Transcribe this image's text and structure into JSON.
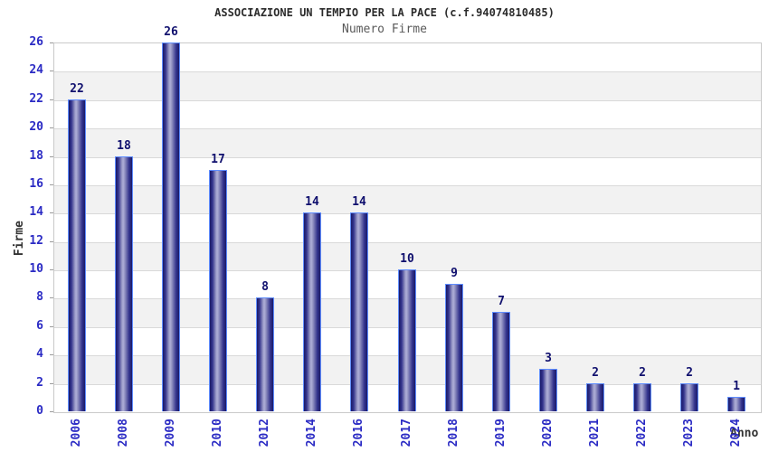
{
  "chart_data": {
    "type": "bar",
    "title": "ASSOCIAZIONE UN TEMPIO PER LA PACE (c.f.94074810485)",
    "subtitle": "Numero Firme",
    "xlabel": "Anno",
    "ylabel": "Firme",
    "categories": [
      "2006",
      "2008",
      "2009",
      "2010",
      "2012",
      "2014",
      "2016",
      "2017",
      "2018",
      "2019",
      "2020",
      "2021",
      "2022",
      "2023",
      "2024"
    ],
    "values": [
      22,
      18,
      26,
      17,
      8,
      14,
      14,
      10,
      9,
      7,
      3,
      2,
      2,
      2,
      1
    ],
    "ylim": [
      0,
      26
    ],
    "ytick_step": 2,
    "yticks": [
      0,
      2,
      4,
      6,
      8,
      10,
      12,
      14,
      16,
      18,
      20,
      22,
      24,
      26
    ],
    "grid": "horizontal-bands",
    "legend": "none",
    "colors": {
      "bar_dark": "#1a1a68",
      "bar_highlight": "#aeaed8",
      "bar_border": "#5f8dff",
      "tick_label": "#2b2bc4",
      "value_label": "#10106e",
      "title": "#2b2b2b",
      "subtitle": "#5a5a5a",
      "axis_label": "#333333",
      "band_alt": "#f2f2f2",
      "gridline": "#d9d9d9",
      "plot_border": "#c9c9c9",
      "background": "#ffffff"
    }
  }
}
